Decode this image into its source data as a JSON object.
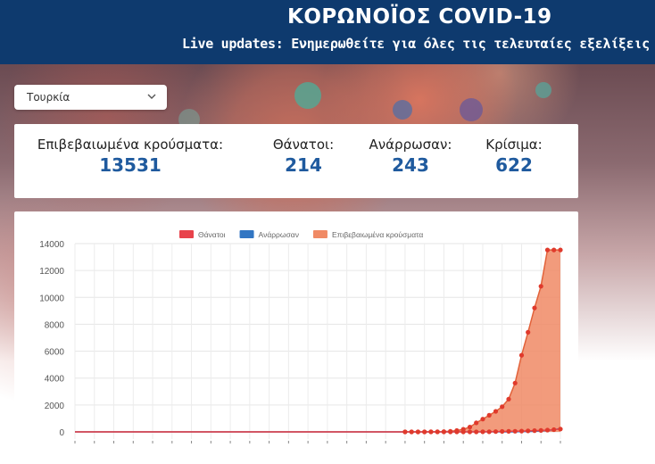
{
  "header": {
    "title": "ΚΟΡΩΝΟΪΟΣ COVID-19",
    "subtitle": "Live updates: Ενημερωθείτε για όλες τις τελευταίες εξελίξεις"
  },
  "country_select": {
    "value": "Τουρκία"
  },
  "stats": [
    {
      "label": "Επιβεβαιωμένα κρούσματα:",
      "value": "13531"
    },
    {
      "label": "Θάνατοι:",
      "value": "214"
    },
    {
      "label": "Ανάρρωσαν:",
      "value": "243"
    },
    {
      "label": "Κρίσιμα:",
      "value": "622"
    }
  ],
  "colors": {
    "header": "#0e3a6e",
    "value_text": "#1f5a9e",
    "deaths": "#e8424b",
    "recovered": "#3276c3",
    "confirmed_fill": "#f08a65",
    "confirmed_line": "#e2623a",
    "point": "#e03a2c"
  },
  "chart_data": {
    "type": "area",
    "ylim": [
      0,
      14000
    ],
    "yticks": [
      0,
      2000,
      4000,
      6000,
      8000,
      10000,
      12000,
      14000
    ],
    "legend_position": "top-center",
    "grid": true,
    "series": [
      {
        "name": "Θάνατοι",
        "color": "#e8424b",
        "values": [
          0,
          0,
          0,
          0,
          0,
          0,
          0,
          0,
          0,
          0,
          0,
          0,
          0,
          0,
          0,
          0,
          0,
          0,
          0,
          0,
          0,
          0,
          0,
          0,
          0,
          0,
          0,
          0,
          0,
          0,
          0,
          0,
          0,
          0,
          0,
          0,
          0,
          0,
          0,
          0,
          0,
          0,
          0,
          0,
          0,
          0,
          0,
          0,
          0,
          0,
          0,
          0,
          0,
          0,
          0,
          0,
          0,
          0,
          0,
          1,
          1,
          2,
          3,
          4,
          9,
          21,
          30,
          37,
          44,
          59,
          75,
          92,
          108,
          131,
          168,
          214
        ]
      },
      {
        "name": "Ανάρρωσαν",
        "color": "#3276c3",
        "values": [
          0,
          0,
          0,
          0,
          0,
          0,
          0,
          0,
          0,
          0,
          0,
          0,
          0,
          0,
          0,
          0,
          0,
          0,
          0,
          0,
          0,
          0,
          0,
          0,
          0,
          0,
          0,
          0,
          0,
          0,
          0,
          0,
          0,
          0,
          0,
          0,
          0,
          0,
          0,
          0,
          0,
          0,
          0,
          0,
          0,
          0,
          0,
          0,
          0,
          0,
          0,
          0,
          0,
          0,
          0,
          0,
          0,
          0,
          0,
          0,
          0,
          0,
          0,
          0,
          0,
          0,
          0,
          0,
          0,
          26,
          26,
          42,
          70,
          105,
          162,
          243
        ]
      },
      {
        "name": "Επιβεβαιωμένα κρούσματα",
        "color": "#f08a65",
        "values": [
          0,
          0,
          0,
          0,
          0,
          0,
          0,
          0,
          0,
          0,
          0,
          0,
          0,
          0,
          0,
          0,
          0,
          0,
          0,
          0,
          0,
          0,
          0,
          0,
          0,
          0,
          0,
          0,
          0,
          0,
          0,
          0,
          0,
          0,
          0,
          0,
          0,
          0,
          0,
          0,
          0,
          0,
          0,
          0,
          0,
          0,
          0,
          0,
          0,
          0,
          0,
          0,
          0,
          1,
          1,
          5,
          6,
          18,
          47,
          98,
          191,
          359,
          670,
          947,
          1236,
          1529,
          1872,
          2433,
          3629,
          5698,
          7402,
          9217,
          10827,
          13531,
          13531,
          13531
        ]
      }
    ]
  }
}
